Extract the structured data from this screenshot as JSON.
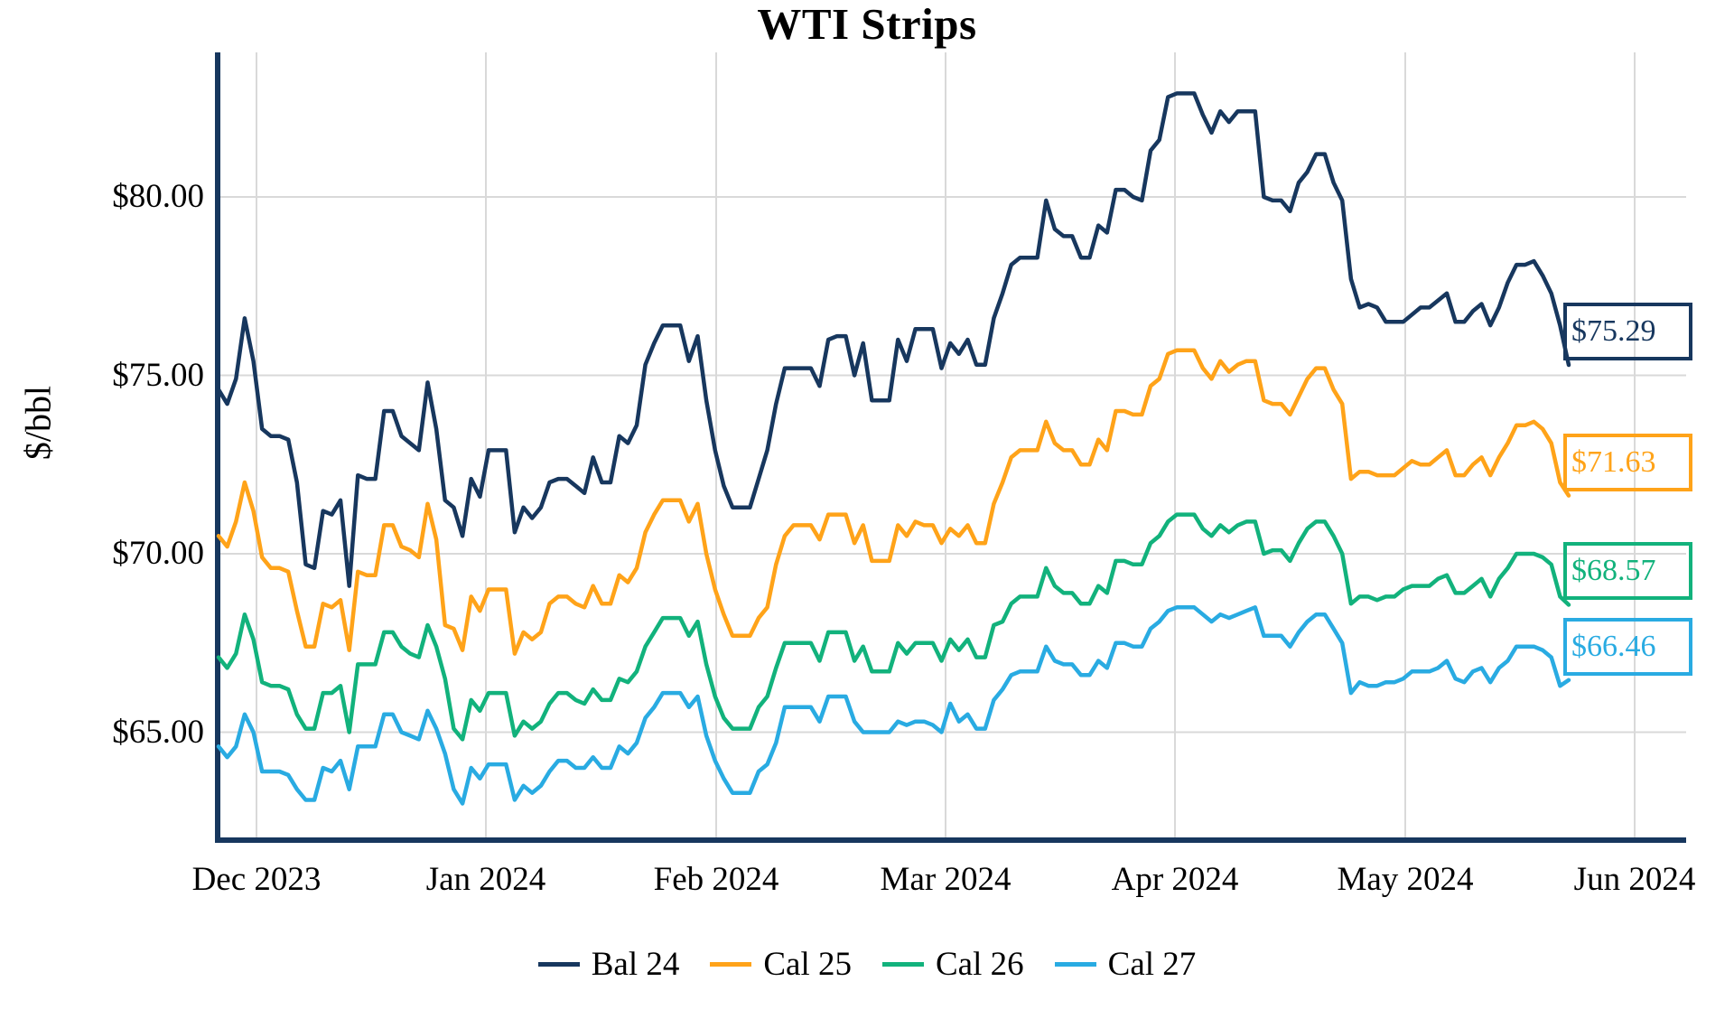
{
  "colors": {
    "axis": "#17375E",
    "grid": "#D9D9D9",
    "background": "#FFFFFF"
  },
  "chart_data": {
    "type": "line",
    "title": "WTI Strips",
    "ylabel": "$/bbl",
    "xlabel": "",
    "ylim": [
      62,
      84
    ],
    "grid": true,
    "legend_position": "bottom",
    "y_ticks": [
      {
        "value": 80,
        "label": "$80.00"
      },
      {
        "value": 75,
        "label": "$75.00"
      },
      {
        "value": 70,
        "label": "$70.00"
      },
      {
        "value": 65,
        "label": "$65.00"
      }
    ],
    "x_tick_labels": [
      "Dec 2023",
      "Jan 2024",
      "Feb 2024",
      "Mar 2024",
      "Apr 2024",
      "May 2024",
      "Jun 2024"
    ],
    "x_range_note": "daily prices, late Nov 2023 through end of May 2024",
    "series": [
      {
        "name": "Bal 24",
        "color": "#17375E",
        "end_label": "$75.29",
        "values": [
          74.6,
          74.2,
          74.9,
          76.6,
          75.4,
          73.5,
          73.3,
          73.3,
          73.2,
          72.0,
          69.7,
          69.6,
          71.2,
          71.1,
          71.5,
          69.1,
          72.2,
          72.1,
          72.1,
          74.0,
          74.0,
          73.3,
          73.1,
          72.9,
          74.8,
          73.5,
          71.5,
          71.3,
          70.5,
          72.1,
          71.6,
          72.9,
          72.9,
          72.9,
          70.6,
          71.3,
          71.0,
          71.3,
          72.0,
          72.1,
          72.1,
          71.9,
          71.7,
          72.7,
          72.0,
          72.0,
          73.3,
          73.1,
          73.6,
          75.3,
          75.9,
          76.4,
          76.4,
          76.4,
          75.4,
          76.1,
          74.3,
          72.9,
          71.9,
          71.3,
          71.3,
          71.3,
          72.1,
          72.9,
          74.2,
          75.2,
          75.2,
          75.2,
          75.2,
          74.7,
          76.0,
          76.1,
          76.1,
          75.0,
          75.9,
          74.3,
          74.3,
          74.3,
          76.0,
          75.4,
          76.3,
          76.3,
          76.3,
          75.2,
          75.9,
          75.6,
          76.0,
          75.3,
          75.3,
          76.6,
          77.3,
          78.1,
          78.3,
          78.3,
          78.3,
          79.9,
          79.1,
          78.9,
          78.9,
          78.3,
          78.3,
          79.2,
          79.0,
          80.2,
          80.2,
          80.0,
          79.9,
          81.3,
          81.6,
          82.8,
          82.9,
          82.9,
          82.9,
          82.3,
          81.8,
          82.4,
          82.1,
          82.4,
          82.4,
          82.4,
          80.0,
          79.9,
          79.9,
          79.6,
          80.4,
          80.7,
          81.2,
          81.2,
          80.4,
          79.9,
          77.7,
          76.9,
          77.0,
          76.9,
          76.5,
          76.5,
          76.5,
          76.7,
          76.9,
          76.9,
          77.1,
          77.3,
          76.5,
          76.5,
          76.8,
          77.0,
          76.4,
          76.9,
          77.6,
          78.1,
          78.1,
          78.2,
          77.8,
          77.3,
          76.4,
          75.29
        ]
      },
      {
        "name": "Cal 25",
        "color": "#FFA319",
        "end_label": "$71.63",
        "values": [
          70.5,
          70.2,
          70.9,
          72.0,
          71.2,
          69.9,
          69.6,
          69.6,
          69.5,
          68.4,
          67.4,
          67.4,
          68.6,
          68.5,
          68.7,
          67.3,
          69.5,
          69.4,
          69.4,
          70.8,
          70.8,
          70.2,
          70.1,
          69.9,
          71.4,
          70.4,
          68.0,
          67.9,
          67.3,
          68.8,
          68.4,
          69.0,
          69.0,
          69.0,
          67.2,
          67.8,
          67.6,
          67.8,
          68.6,
          68.8,
          68.8,
          68.6,
          68.5,
          69.1,
          68.6,
          68.6,
          69.4,
          69.2,
          69.6,
          70.6,
          71.1,
          71.5,
          71.5,
          71.5,
          70.9,
          71.4,
          70.0,
          69.0,
          68.3,
          67.7,
          67.7,
          67.7,
          68.2,
          68.5,
          69.7,
          70.5,
          70.8,
          70.8,
          70.8,
          70.4,
          71.1,
          71.1,
          71.1,
          70.3,
          70.8,
          69.8,
          69.8,
          69.8,
          70.8,
          70.5,
          70.9,
          70.8,
          70.8,
          70.3,
          70.7,
          70.5,
          70.8,
          70.3,
          70.3,
          71.4,
          72.0,
          72.7,
          72.9,
          72.9,
          72.9,
          73.7,
          73.1,
          72.9,
          72.9,
          72.5,
          72.5,
          73.2,
          72.9,
          74.0,
          74.0,
          73.9,
          73.9,
          74.7,
          74.9,
          75.6,
          75.7,
          75.7,
          75.7,
          75.2,
          74.9,
          75.4,
          75.1,
          75.3,
          75.4,
          75.4,
          74.3,
          74.2,
          74.2,
          73.9,
          74.4,
          74.9,
          75.2,
          75.2,
          74.6,
          74.2,
          72.1,
          72.3,
          72.3,
          72.2,
          72.2,
          72.2,
          72.4,
          72.6,
          72.5,
          72.5,
          72.7,
          72.9,
          72.2,
          72.2,
          72.5,
          72.7,
          72.2,
          72.7,
          73.1,
          73.6,
          73.6,
          73.7,
          73.5,
          73.1,
          72.0,
          71.63
        ]
      },
      {
        "name": "Cal 26",
        "color": "#12B27C",
        "end_label": "$68.57",
        "values": [
          67.1,
          66.8,
          67.2,
          68.3,
          67.6,
          66.4,
          66.3,
          66.3,
          66.2,
          65.5,
          65.1,
          65.1,
          66.1,
          66.1,
          66.3,
          65.0,
          66.9,
          66.9,
          66.9,
          67.8,
          67.8,
          67.4,
          67.2,
          67.1,
          68.0,
          67.4,
          66.5,
          65.1,
          64.8,
          65.9,
          65.6,
          66.1,
          66.1,
          66.1,
          64.9,
          65.3,
          65.1,
          65.3,
          65.8,
          66.1,
          66.1,
          65.9,
          65.8,
          66.2,
          65.9,
          65.9,
          66.5,
          66.4,
          66.7,
          67.4,
          67.8,
          68.2,
          68.2,
          68.2,
          67.7,
          68.1,
          66.9,
          66.0,
          65.4,
          65.1,
          65.1,
          65.1,
          65.7,
          66.0,
          66.8,
          67.5,
          67.5,
          67.5,
          67.5,
          67.0,
          67.8,
          67.8,
          67.8,
          67.0,
          67.4,
          66.7,
          66.7,
          66.7,
          67.5,
          67.2,
          67.5,
          67.5,
          67.5,
          67.0,
          67.6,
          67.3,
          67.6,
          67.1,
          67.1,
          68.0,
          68.1,
          68.6,
          68.8,
          68.8,
          68.8,
          69.6,
          69.1,
          68.9,
          68.9,
          68.6,
          68.6,
          69.1,
          68.9,
          69.8,
          69.8,
          69.7,
          69.7,
          70.3,
          70.5,
          70.9,
          71.1,
          71.1,
          71.1,
          70.7,
          70.5,
          70.8,
          70.6,
          70.8,
          70.9,
          70.9,
          70.0,
          70.1,
          70.1,
          69.8,
          70.3,
          70.7,
          70.9,
          70.9,
          70.5,
          70.0,
          68.6,
          68.8,
          68.8,
          68.7,
          68.8,
          68.8,
          69.0,
          69.1,
          69.1,
          69.1,
          69.3,
          69.4,
          68.9,
          68.9,
          69.1,
          69.3,
          68.8,
          69.3,
          69.6,
          70.0,
          70.0,
          70.0,
          69.9,
          69.7,
          68.8,
          68.57
        ]
      },
      {
        "name": "Cal 27",
        "color": "#29ABE2",
        "end_label": "$66.46",
        "values": [
          64.6,
          64.3,
          64.6,
          65.5,
          65.0,
          63.9,
          63.9,
          63.9,
          63.8,
          63.4,
          63.1,
          63.1,
          64.0,
          63.9,
          64.2,
          63.4,
          64.6,
          64.6,
          64.6,
          65.5,
          65.5,
          65.0,
          64.9,
          64.8,
          65.6,
          65.1,
          64.4,
          63.4,
          63.0,
          64.0,
          63.7,
          64.1,
          64.1,
          64.1,
          63.1,
          63.5,
          63.3,
          63.5,
          63.9,
          64.2,
          64.2,
          64.0,
          64.0,
          64.3,
          64.0,
          64.0,
          64.6,
          64.4,
          64.7,
          65.4,
          65.7,
          66.1,
          66.1,
          66.1,
          65.7,
          66.0,
          64.9,
          64.2,
          63.7,
          63.3,
          63.3,
          63.3,
          63.9,
          64.1,
          64.7,
          65.7,
          65.7,
          65.7,
          65.7,
          65.3,
          66.0,
          66.0,
          66.0,
          65.3,
          65.0,
          65.0,
          65.0,
          65.0,
          65.3,
          65.2,
          65.3,
          65.3,
          65.2,
          65.0,
          65.8,
          65.3,
          65.5,
          65.1,
          65.1,
          65.9,
          66.2,
          66.6,
          66.7,
          66.7,
          66.7,
          67.4,
          67.0,
          66.9,
          66.9,
          66.6,
          66.6,
          67.0,
          66.8,
          67.5,
          67.5,
          67.4,
          67.4,
          67.9,
          68.1,
          68.4,
          68.5,
          68.5,
          68.5,
          68.3,
          68.1,
          68.3,
          68.2,
          68.3,
          68.4,
          68.5,
          67.7,
          67.7,
          67.7,
          67.4,
          67.8,
          68.1,
          68.3,
          68.3,
          67.9,
          67.5,
          66.1,
          66.4,
          66.3,
          66.3,
          66.4,
          66.4,
          66.5,
          66.7,
          66.7,
          66.7,
          66.8,
          67.0,
          66.5,
          66.4,
          66.7,
          66.8,
          66.4,
          66.8,
          67.0,
          67.4,
          67.4,
          67.4,
          67.3,
          67.1,
          66.3,
          66.46
        ]
      }
    ]
  }
}
